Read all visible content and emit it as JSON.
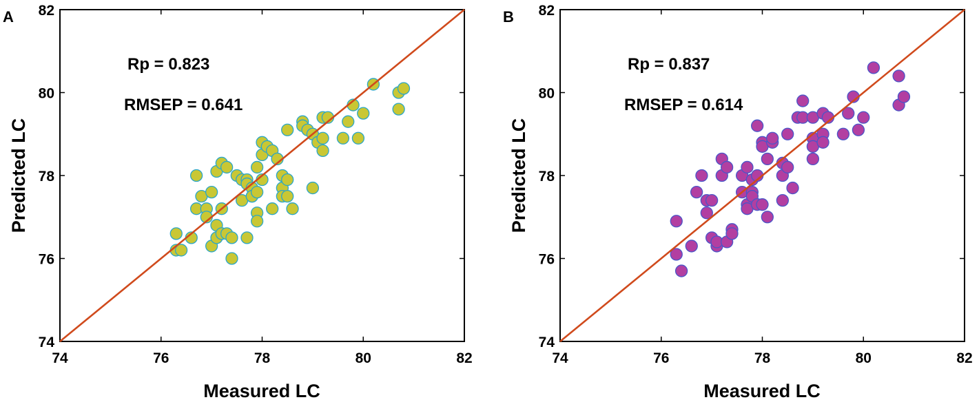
{
  "chart_data": [
    {
      "panel": "A",
      "type": "scatter",
      "xlabel": "Measured LC",
      "ylabel": "Predicted LC",
      "xlim": [
        74,
        82
      ],
      "ylim": [
        74,
        82
      ],
      "xticks": [
        74,
        76,
        78,
        80,
        82
      ],
      "yticks": [
        74,
        76,
        78,
        80,
        82
      ],
      "grid": false,
      "reference_line": {
        "x": [
          74,
          82
        ],
        "y": [
          74,
          82
        ],
        "color": "#d04a1c"
      },
      "annotations": [
        {
          "text": "Rp = 0.823"
        },
        {
          "text": "RMSEP = 0.641"
        }
      ],
      "marker": {
        "fill": "#c9c734",
        "edge": "#2aa6c8"
      },
      "points": [
        [
          76.3,
          76.6
        ],
        [
          76.3,
          76.2
        ],
        [
          76.4,
          76.2
        ],
        [
          76.6,
          76.5
        ],
        [
          76.7,
          78.0
        ],
        [
          76.7,
          77.2
        ],
        [
          76.8,
          77.5
        ],
        [
          76.9,
          77.2
        ],
        [
          76.9,
          77.0
        ],
        [
          77.0,
          77.6
        ],
        [
          77.0,
          76.3
        ],
        [
          77.1,
          78.1
        ],
        [
          77.1,
          76.8
        ],
        [
          77.1,
          76.5
        ],
        [
          77.2,
          78.3
        ],
        [
          77.2,
          77.2
        ],
        [
          77.2,
          76.6
        ],
        [
          77.3,
          78.2
        ],
        [
          77.3,
          76.6
        ],
        [
          77.4,
          76.5
        ],
        [
          77.4,
          76.0
        ],
        [
          77.5,
          78.0
        ],
        [
          77.6,
          77.9
        ],
        [
          77.6,
          77.4
        ],
        [
          77.7,
          77.9
        ],
        [
          77.7,
          77.8
        ],
        [
          77.7,
          76.5
        ],
        [
          77.8,
          77.7
        ],
        [
          77.8,
          77.5
        ],
        [
          77.8,
          77.5
        ],
        [
          77.9,
          78.2
        ],
        [
          77.9,
          77.6
        ],
        [
          77.9,
          77.1
        ],
        [
          77.9,
          76.9
        ],
        [
          78.0,
          78.8
        ],
        [
          78.0,
          78.5
        ],
        [
          78.0,
          77.9
        ],
        [
          78.1,
          78.7
        ],
        [
          78.2,
          78.6
        ],
        [
          78.2,
          77.2
        ],
        [
          78.3,
          78.4
        ],
        [
          78.4,
          78.0
        ],
        [
          78.4,
          77.7
        ],
        [
          78.4,
          77.5
        ],
        [
          78.5,
          79.1
        ],
        [
          78.5,
          77.9
        ],
        [
          78.5,
          77.5
        ],
        [
          78.6,
          77.2
        ],
        [
          78.8,
          79.3
        ],
        [
          78.8,
          79.2
        ],
        [
          78.9,
          79.1
        ],
        [
          79.0,
          79.0
        ],
        [
          79.0,
          77.7
        ],
        [
          79.1,
          78.8
        ],
        [
          79.2,
          79.4
        ],
        [
          79.2,
          78.9
        ],
        [
          79.2,
          78.6
        ],
        [
          79.3,
          79.4
        ],
        [
          79.6,
          78.9
        ],
        [
          79.7,
          79.3
        ],
        [
          79.8,
          79.7
        ],
        [
          79.9,
          78.9
        ],
        [
          80.0,
          79.5
        ],
        [
          80.2,
          80.2
        ],
        [
          80.7,
          80.0
        ],
        [
          80.7,
          79.6
        ],
        [
          80.8,
          80.1
        ]
      ]
    },
    {
      "panel": "B",
      "type": "scatter",
      "xlabel": "Measured LC",
      "ylabel": "Predicted LC",
      "xlim": [
        74,
        82
      ],
      "ylim": [
        74,
        82
      ],
      "xticks": [
        74,
        76,
        78,
        80,
        82
      ],
      "yticks": [
        74,
        76,
        78,
        80,
        82
      ],
      "grid": false,
      "reference_line": {
        "x": [
          74,
          82
        ],
        "y": [
          74,
          82
        ],
        "color": "#d04a1c"
      },
      "annotations": [
        {
          "text": "Rp = 0.837"
        },
        {
          "text": "RMSEP = 0.614"
        }
      ],
      "marker": {
        "fill": "#b23fa1",
        "edge": "#4a55c8"
      },
      "points": [
        [
          76.3,
          76.9
        ],
        [
          76.3,
          76.1
        ],
        [
          76.4,
          75.7
        ],
        [
          76.6,
          76.3
        ],
        [
          76.7,
          77.6
        ],
        [
          76.8,
          78.0
        ],
        [
          76.9,
          77.1
        ],
        [
          76.9,
          77.4
        ],
        [
          77.0,
          77.4
        ],
        [
          77.0,
          76.5
        ],
        [
          77.1,
          76.3
        ],
        [
          77.1,
          76.4
        ],
        [
          77.2,
          78.4
        ],
        [
          77.2,
          78.0
        ],
        [
          77.3,
          78.2
        ],
        [
          77.3,
          76.4
        ],
        [
          77.4,
          76.7
        ],
        [
          77.4,
          76.6
        ],
        [
          77.6,
          78.0
        ],
        [
          77.6,
          77.6
        ],
        [
          77.7,
          78.2
        ],
        [
          77.7,
          77.3
        ],
        [
          77.7,
          77.2
        ],
        [
          77.8,
          77.9
        ],
        [
          77.8,
          77.6
        ],
        [
          77.8,
          77.5
        ],
        [
          77.9,
          79.2
        ],
        [
          77.9,
          78.0
        ],
        [
          77.9,
          77.3
        ],
        [
          78.0,
          78.8
        ],
        [
          78.0,
          78.7
        ],
        [
          78.0,
          77.3
        ],
        [
          78.1,
          78.4
        ],
        [
          78.1,
          77.0
        ],
        [
          78.2,
          78.8
        ],
        [
          78.2,
          78.9
        ],
        [
          78.4,
          78.3
        ],
        [
          78.4,
          78.0
        ],
        [
          78.4,
          77.4
        ],
        [
          78.5,
          79.0
        ],
        [
          78.5,
          78.2
        ],
        [
          78.6,
          77.7
        ],
        [
          78.7,
          79.4
        ],
        [
          78.8,
          79.8
        ],
        [
          78.8,
          79.4
        ],
        [
          79.0,
          79.4
        ],
        [
          79.0,
          78.9
        ],
        [
          79.0,
          78.7
        ],
        [
          79.0,
          78.4
        ],
        [
          79.2,
          79.5
        ],
        [
          79.2,
          79.0
        ],
        [
          79.2,
          78.8
        ],
        [
          79.3,
          79.4
        ],
        [
          79.6,
          79.0
        ],
        [
          79.7,
          79.5
        ],
        [
          79.8,
          79.9
        ],
        [
          79.9,
          79.1
        ],
        [
          80.0,
          79.4
        ],
        [
          80.2,
          80.6
        ],
        [
          80.7,
          80.4
        ],
        [
          80.7,
          79.7
        ],
        [
          80.8,
          79.9
        ]
      ]
    }
  ]
}
